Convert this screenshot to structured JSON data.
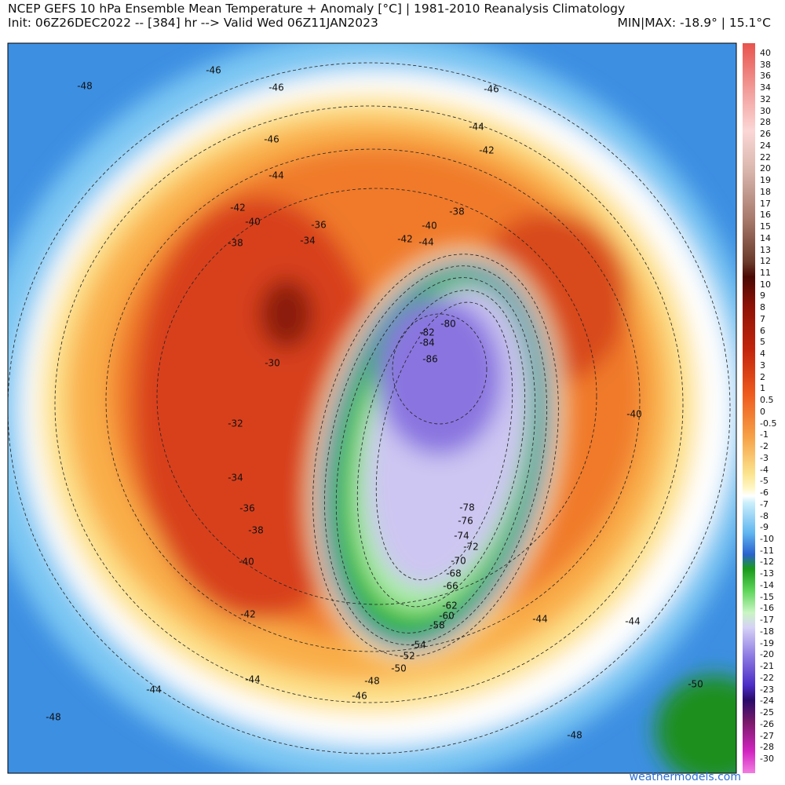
{
  "header": {
    "title": "NCEP GEFS 10 hPa Ensemble Mean Temperature + Anomaly [°C] | 1981-2010 Reanalysis Climatology",
    "init": "Init: 06Z26DEC2022 -- [384] hr --> Valid Wed 06Z11JAN2023",
    "minmax": "MIN|MAX: -18.9° | 15.1°C"
  },
  "colorbar": {
    "labels": [
      40,
      38,
      36,
      34,
      32,
      30,
      28,
      26,
      24,
      22,
      20,
      19,
      18,
      17,
      16,
      15,
      14,
      13,
      12,
      11,
      10,
      9,
      8,
      7,
      6,
      5,
      4,
      3,
      2,
      1,
      0.5,
      0,
      -0.5,
      -1,
      -2,
      -3,
      -4,
      -5,
      -6,
      -7,
      -8,
      -9,
      -10,
      -11,
      -12,
      -13,
      -14,
      -15,
      -16,
      -17,
      -18,
      -19,
      -20,
      -21,
      -22,
      -23,
      -24,
      -25,
      -26,
      -27,
      -28,
      -30
    ]
  },
  "contour_labels": [
    -48,
    -46,
    -46,
    -46,
    -44,
    -46,
    -44,
    -42,
    -42,
    -40,
    -38,
    -36,
    -40,
    -42,
    -44,
    -34,
    -38,
    -82,
    -80,
    -84,
    -86,
    -30,
    -32,
    -40,
    -34,
    -36,
    -38,
    -78,
    -76,
    -74,
    -72,
    -70,
    -68,
    -66,
    -62,
    -60,
    -58,
    -40,
    -42,
    -44,
    -44,
    -54,
    -52,
    -50,
    -48,
    -46,
    -44,
    -44,
    -48,
    -50,
    -48
  ],
  "watermark": "weathermodels.com"
}
